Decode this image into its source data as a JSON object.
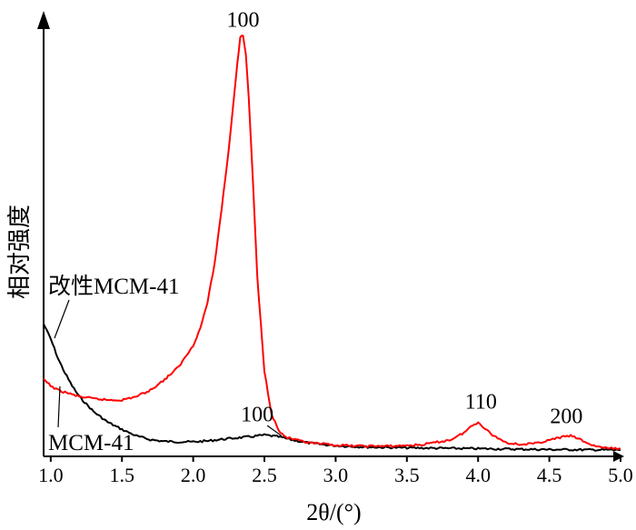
{
  "chart_data": {
    "type": "line",
    "xlabel": "2θ/(°)",
    "ylabel": "相对强度",
    "xlim": [
      0.95,
      5.0
    ],
    "ylim": [
      0,
      100
    ],
    "x_ticks": [
      "1.0",
      "1.5",
      "2.0",
      "2.5",
      "3.0",
      "3.5",
      "4.0",
      "4.5",
      "5.0"
    ],
    "series": [
      {
        "name": "改性MCM-41",
        "color": "#000000",
        "x": [
          0.95,
          1.0,
          1.05,
          1.1,
          1.15,
          1.2,
          1.3,
          1.4,
          1.5,
          1.6,
          1.7,
          1.8,
          1.9,
          2.0,
          2.1,
          2.2,
          2.3,
          2.4,
          2.5,
          2.6,
          2.7,
          2.8,
          2.9,
          3.0,
          3.2,
          3.5,
          4.0,
          4.5,
          5.0
        ],
        "y": [
          31.0,
          27.5,
          23.0,
          19.5,
          16.5,
          14.0,
          10.5,
          8.0,
          6.3,
          4.8,
          3.9,
          3.5,
          3.4,
          3.4,
          3.6,
          4.0,
          4.3,
          4.6,
          5.0,
          4.6,
          3.8,
          3.2,
          2.8,
          2.5,
          2.2,
          2.0,
          1.8,
          1.6,
          1.5
        ]
      },
      {
        "name": "MCM-41",
        "color": "#ff0000",
        "x": [
          0.95,
          1.0,
          1.05,
          1.1,
          1.15,
          1.2,
          1.3,
          1.4,
          1.5,
          1.6,
          1.7,
          1.8,
          1.9,
          2.0,
          2.05,
          2.1,
          2.15,
          2.2,
          2.25,
          2.28,
          2.31,
          2.33,
          2.35,
          2.37,
          2.39,
          2.42,
          2.45,
          2.5,
          2.55,
          2.6,
          2.65,
          2.7,
          2.8,
          3.0,
          3.2,
          3.4,
          3.6,
          3.8,
          3.9,
          3.95,
          4.0,
          4.05,
          4.1,
          4.2,
          4.3,
          4.4,
          4.5,
          4.6,
          4.65,
          4.7,
          4.8,
          4.9,
          5.0
        ],
        "y": [
          18.0,
          16.5,
          15.5,
          15.0,
          14.5,
          14.0,
          13.5,
          13.2,
          13.2,
          14.0,
          15.5,
          18.0,
          21.0,
          26.0,
          30.0,
          36.0,
          45.0,
          58.0,
          72.0,
          82.0,
          92.0,
          98.0,
          98.5,
          94.0,
          84.0,
          64.0,
          42.0,
          20.0,
          10.0,
          6.0,
          4.5,
          4.0,
          3.2,
          2.6,
          2.4,
          2.4,
          2.7,
          3.8,
          5.5,
          7.0,
          8.0,
          6.5,
          5.0,
          3.2,
          2.8,
          3.0,
          3.8,
          4.6,
          4.8,
          4.2,
          2.6,
          1.9,
          1.8
        ]
      }
    ],
    "annotations": [
      {
        "text": "100",
        "x": 2.35,
        "y": 100.5
      },
      {
        "text": "100",
        "x": 2.45,
        "y": 8.2
      },
      {
        "text": "110",
        "x": 4.02,
        "y": 11.2
      },
      {
        "text": "200",
        "x": 4.62,
        "y": 7.8
      }
    ],
    "legend": [
      {
        "text": "改性MCM-41",
        "position": "upper-left",
        "color": "#000000"
      },
      {
        "text": "MCM-41",
        "position": "lower-left",
        "color": "#ff0000"
      }
    ],
    "grid": false
  }
}
